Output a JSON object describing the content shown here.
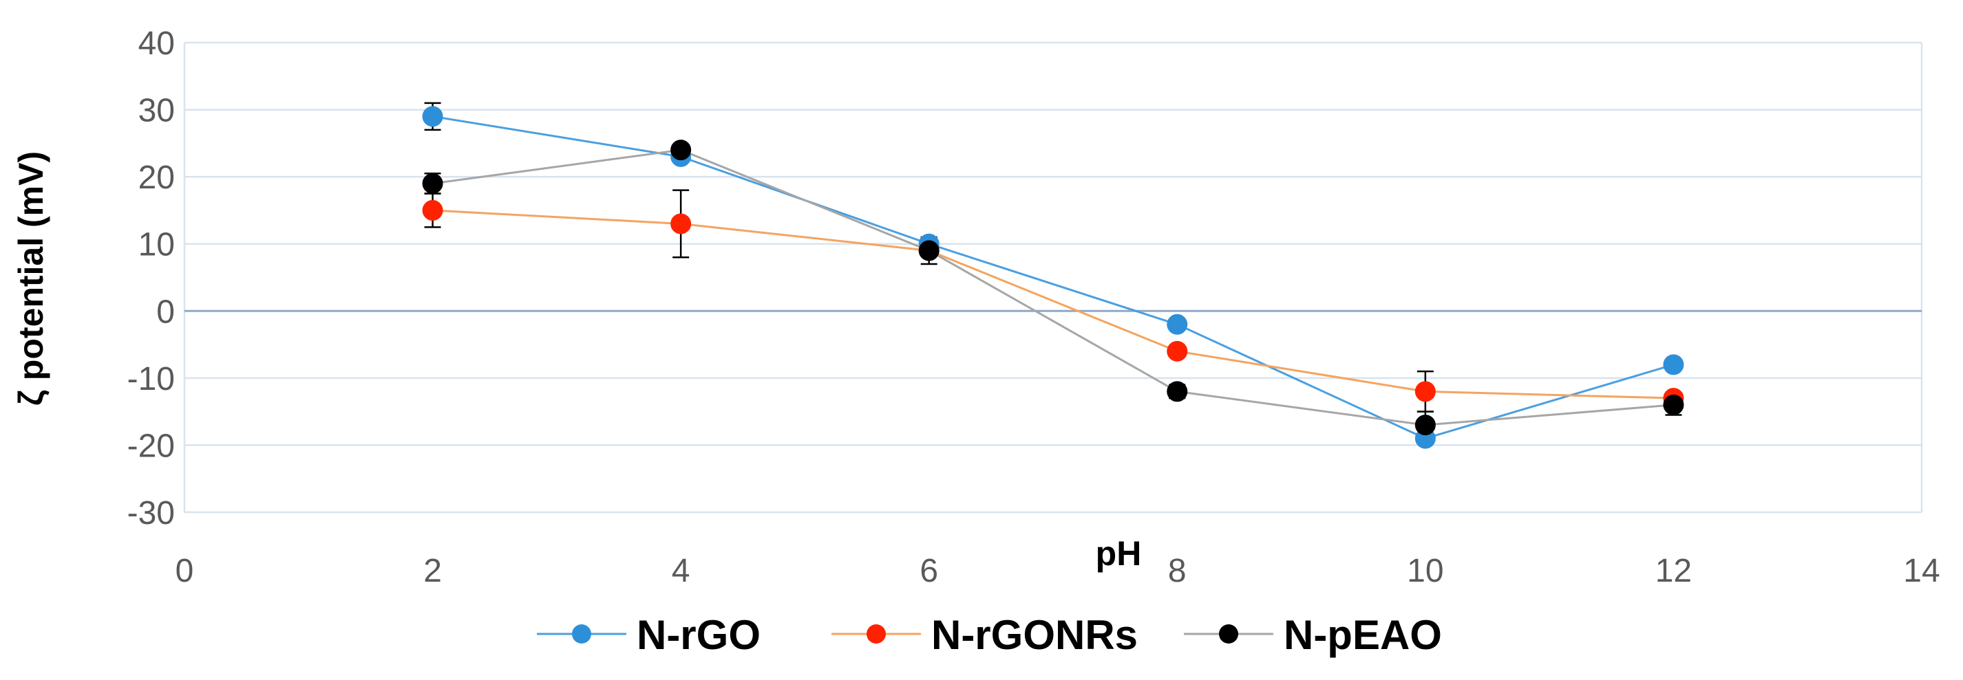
{
  "chart_data": {
    "type": "line",
    "title": "",
    "xlabel": "pH",
    "ylabel": "ζ potential (mV)",
    "xlim": [
      0,
      14
    ],
    "ylim": [
      -30,
      40
    ],
    "xticks": [
      0,
      2,
      4,
      6,
      8,
      10,
      12,
      14
    ],
    "yticks": [
      -30,
      -20,
      -10,
      0,
      10,
      20,
      30,
      40
    ],
    "grid": true,
    "legend_position": "bottom",
    "series": [
      {
        "name": "N-rGO",
        "color": "#2E8FD9",
        "line_color": "#4A9FE0",
        "x": [
          2,
          4,
          6,
          8,
          10,
          12
        ],
        "y": [
          29,
          23,
          10,
          -2,
          -19,
          -8
        ],
        "err": [
          2,
          0,
          0,
          0,
          0,
          0
        ]
      },
      {
        "name": "N-rGONRs",
        "color": "#FF2200",
        "line_color": "#F4A460",
        "x": [
          2,
          4,
          6,
          8,
          10,
          12
        ],
        "y": [
          15,
          13,
          9,
          -6,
          -12,
          -13
        ],
        "err": [
          2.5,
          5,
          0,
          0,
          3,
          0
        ]
      },
      {
        "name": "N-pEAO",
        "color": "#000000",
        "line_color": "#A6A6A6",
        "x": [
          2,
          4,
          6,
          8,
          10,
          12
        ],
        "y": [
          19,
          24,
          9,
          -12,
          -17,
          -14
        ],
        "err": [
          1.5,
          0,
          2,
          1,
          2,
          1.5
        ]
      }
    ]
  }
}
